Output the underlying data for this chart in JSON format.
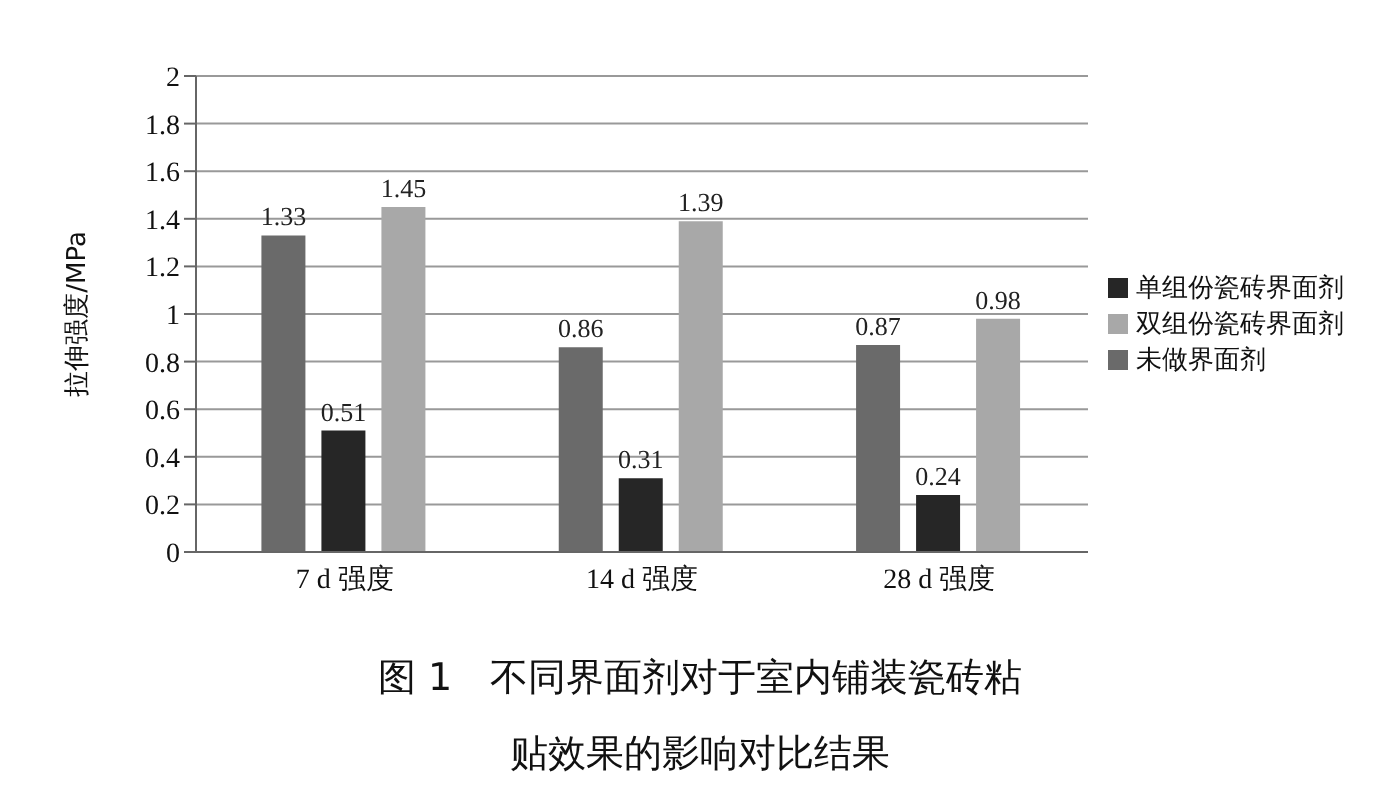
{
  "chart_data": {
    "type": "bar",
    "title": "图 1　不同界面剂对于室内铺装瓷砖粘贴效果的影响对比结果",
    "ylabel": "拉伸强度/MPa",
    "categories": [
      "7 d 强度",
      "14 d 强度",
      "28 d 强度"
    ],
    "series": [
      {
        "name": "未做界面剂",
        "color": "#6a6a6a",
        "values": [
          1.33,
          0.86,
          0.87
        ]
      },
      {
        "name": "单组份瓷砖界面剂",
        "color": "#262626",
        "values": [
          0.51,
          0.31,
          0.24
        ]
      },
      {
        "name": "双组份瓷砖界面剂",
        "color": "#a8a8a8",
        "values": [
          1.45,
          1.39,
          0.98
        ]
      }
    ],
    "ylim": [
      0,
      2
    ],
    "yticks": [
      0,
      0.2,
      0.4,
      0.6,
      0.8,
      1,
      1.2,
      1.4,
      1.6,
      1.8,
      2
    ],
    "grid": "y",
    "legend": "right",
    "data_labels": true
  }
}
